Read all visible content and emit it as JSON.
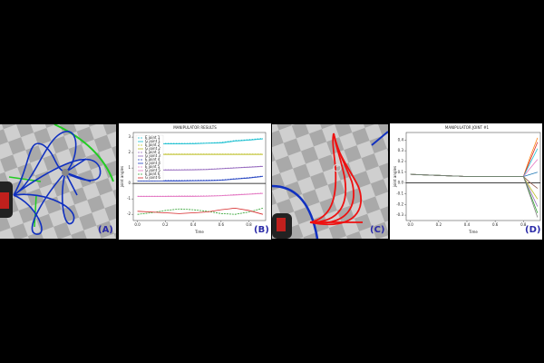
{
  "panels": [
    {
      "label": "(A)"
    },
    {
      "label": "(B)"
    },
    {
      "label": "(C)"
    },
    {
      "label": "(D)"
    }
  ],
  "chart_data": [
    {
      "type": "line",
      "title": "MANIPULATOR RESULTS",
      "x_label": "Time",
      "y_label": "joint angles",
      "x": [
        0,
        0.1,
        0.2,
        0.3,
        0.4,
        0.5,
        0.6,
        0.7,
        0.8,
        0.9
      ],
      "xlim": [
        -0.03,
        0.92
      ],
      "ylim": [
        -2.4,
        3.3
      ],
      "xticks": [
        {
          "value": 0,
          "label": "0.0"
        },
        {
          "value": 0.2,
          "label": "0.2"
        },
        {
          "value": 0.4,
          "label": "0.4"
        },
        {
          "value": 0.6,
          "label": "0.6"
        },
        {
          "value": 0.8,
          "label": "0.8"
        }
      ],
      "yticks": [
        3,
        2,
        1,
        0,
        -1,
        -2
      ],
      "legend": "upper left",
      "hline": 0,
      "series": [
        {
          "name": "E joint 1",
          "color": "#17becf",
          "dash": true,
          "values": [
            2.58,
            2.58,
            2.59,
            2.59,
            2.6,
            2.62,
            2.66,
            2.78,
            2.84,
            2.92
          ]
        },
        {
          "name": "G joint 1",
          "color": "#17becf",
          "dash": false,
          "values": [
            2.55,
            2.55,
            2.56,
            2.56,
            2.57,
            2.6,
            2.62,
            2.74,
            2.8,
            2.88
          ]
        },
        {
          "name": "E joint 2",
          "color": "#bcbd22",
          "dash": true,
          "values": [
            1.9,
            1.9,
            1.9,
            1.9,
            1.9,
            1.9,
            1.9,
            1.9,
            1.9,
            1.9
          ]
        },
        {
          "name": "G joint 2",
          "color": "#bcbd22",
          "dash": false,
          "values": [
            1.88,
            1.88,
            1.88,
            1.88,
            1.88,
            1.88,
            1.88,
            1.88,
            1.88,
            1.88
          ]
        },
        {
          "name": "E joint 3",
          "color": "#9467bd",
          "dash": true,
          "values": [
            0.88,
            0.88,
            0.89,
            0.89,
            0.9,
            0.92,
            0.97,
            1.02,
            1.07,
            1.12
          ]
        },
        {
          "name": "G joint 3",
          "color": "#9467bd",
          "dash": false,
          "values": [
            0.85,
            0.86,
            0.86,
            0.87,
            0.88,
            0.9,
            0.95,
            1.0,
            1.05,
            1.1
          ]
        },
        {
          "name": "E joint 4",
          "color": "#1f3fbf",
          "dash": true,
          "values": [
            0.18,
            0.18,
            0.19,
            0.19,
            0.2,
            0.21,
            0.23,
            0.31,
            0.38,
            0.48
          ]
        },
        {
          "name": "G joint 4",
          "color": "#1f3fbf",
          "dash": false,
          "values": [
            0.15,
            0.15,
            0.16,
            0.16,
            0.17,
            0.18,
            0.2,
            0.28,
            0.35,
            0.45
          ]
        },
        {
          "name": "E joint 5",
          "color": "#e377c2",
          "dash": true,
          "values": [
            -0.82,
            -0.82,
            -0.82,
            -0.81,
            -0.81,
            -0.8,
            -0.78,
            -0.72,
            -0.68,
            -0.62
          ]
        },
        {
          "name": "G joint 5",
          "color": "#e377c2",
          "dash": false,
          "values": [
            -0.85,
            -0.85,
            -0.85,
            -0.84,
            -0.84,
            -0.83,
            -0.8,
            -0.75,
            -0.7,
            -0.65
          ]
        },
        {
          "name": "E joint 6",
          "color": "#2ca02c",
          "dash": true,
          "values": [
            -2.0,
            -1.9,
            -1.75,
            -1.65,
            -1.7,
            -1.8,
            -1.95,
            -2.0,
            -1.85,
            -1.6
          ]
        },
        {
          "name": "G joint 6",
          "color": "#d62728",
          "dash": false,
          "values": [
            -1.8,
            -1.85,
            -1.9,
            -1.95,
            -1.9,
            -1.85,
            -1.7,
            -1.6,
            -1.75,
            -2.0
          ]
        }
      ]
    },
    {
      "type": "line",
      "title": "MANIPULATOR JOINT #1",
      "x_label": "Time",
      "y_label": "joint angles",
      "x": [
        0,
        0.2,
        0.4,
        0.6,
        0.8,
        0.85,
        0.9
      ],
      "xlim": [
        -0.03,
        0.92
      ],
      "ylim": [
        -0.35,
        0.47
      ],
      "xticks": [
        {
          "value": 0,
          "label": "0.0"
        },
        {
          "value": 0.2,
          "label": "0.2"
        },
        {
          "value": 0.4,
          "label": "0.4"
        },
        {
          "value": 0.6,
          "label": "0.6"
        },
        {
          "value": 0.8,
          "label": "0.8"
        }
      ],
      "yticks": [
        0.4,
        0.3,
        0.2,
        0.1,
        {
          "value": 0,
          "label": "0.0"
        },
        -0.1,
        -0.2,
        -0.3
      ],
      "hline": 0,
      "series": [
        {
          "color": "#ff7f0e",
          "values": [
            0.08,
            0.07,
            0.06,
            0.06,
            0.06,
            0.25,
            0.42
          ]
        },
        {
          "color": "#d62728",
          "values": [
            0.08,
            0.07,
            0.06,
            0.06,
            0.06,
            0.22,
            0.38
          ]
        },
        {
          "color": "#17becf",
          "values": [
            0.08,
            0.07,
            0.06,
            0.06,
            0.06,
            0.19,
            0.32
          ]
        },
        {
          "color": "#e377c2",
          "values": [
            0.08,
            0.07,
            0.06,
            0.06,
            0.06,
            0.14,
            0.22
          ]
        },
        {
          "color": "#1f77b4",
          "values": [
            0.08,
            0.07,
            0.06,
            0.06,
            0.06,
            0.08,
            0.1
          ]
        },
        {
          "color": "#8c564b",
          "values": [
            0.08,
            0.07,
            0.06,
            0.06,
            0.06,
            0.0,
            -0.05
          ]
        },
        {
          "color": "#bcbd22",
          "values": [
            0.08,
            0.07,
            0.06,
            0.06,
            0.06,
            -0.05,
            -0.15
          ]
        },
        {
          "color": "#9467bd",
          "values": [
            0.08,
            0.07,
            0.06,
            0.06,
            0.06,
            -0.08,
            -0.22
          ]
        },
        {
          "color": "#2ca02c",
          "values": [
            0.08,
            0.07,
            0.06,
            0.06,
            0.06,
            -0.11,
            -0.28
          ]
        },
        {
          "color": "#7f7f7f",
          "values": [
            0.08,
            0.07,
            0.06,
            0.06,
            0.06,
            -0.13,
            -0.32
          ]
        }
      ]
    }
  ]
}
